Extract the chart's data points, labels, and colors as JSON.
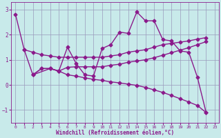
{
  "xlabel": "Windchill (Refroidissement éolien,°C)",
  "bg_color": "#c8eaea",
  "line_color": "#8b1a8b",
  "xlim": [
    -0.5,
    23.5
  ],
  "ylim": [
    -1.5,
    3.3
  ],
  "xticks": [
    0,
    1,
    2,
    3,
    4,
    5,
    6,
    7,
    8,
    9,
    10,
    11,
    12,
    13,
    14,
    15,
    16,
    17,
    18,
    19,
    20,
    21,
    22,
    23
  ],
  "yticks": [
    -1,
    0,
    1,
    2,
    3
  ],
  "grid_color": "#9999bb",
  "font_color": "#8b1a8b",
  "linewidth": 1.0,
  "markersize": 2.5,
  "line1_x": [
    0,
    1,
    2,
    3,
    4,
    5,
    6,
    7,
    8,
    9,
    10,
    11,
    12,
    13,
    14,
    15,
    16,
    17,
    18,
    19,
    20,
    21,
    22
  ],
  "line1_y": [
    2.8,
    1.4,
    0.4,
    0.65,
    0.65,
    0.55,
    1.5,
    0.85,
    0.4,
    0.35,
    1.45,
    1.6,
    2.1,
    2.05,
    2.9,
    2.55,
    2.55,
    1.8,
    1.75,
    1.35,
    1.3,
    0.3,
    -1.1
  ],
  "line2_x": [
    1,
    2,
    3,
    4,
    5,
    6,
    7,
    8,
    9,
    10,
    11,
    12,
    13,
    14,
    15,
    16,
    17,
    18,
    19,
    20,
    21,
    22
  ],
  "line2_y": [
    1.4,
    1.3,
    1.2,
    1.15,
    1.1,
    1.1,
    1.1,
    1.1,
    1.1,
    1.1,
    1.15,
    1.2,
    1.3,
    1.35,
    1.4,
    1.5,
    1.6,
    1.65,
    1.7,
    1.75,
    1.82,
    1.88
  ],
  "line3_x": [
    2,
    3,
    4,
    5,
    6,
    7,
    8,
    9,
    10,
    11,
    12,
    13,
    14,
    15,
    16,
    17,
    18,
    19,
    20,
    21,
    22
  ],
  "line3_y": [
    0.4,
    0.65,
    0.65,
    0.55,
    0.7,
    0.72,
    0.72,
    0.72,
    0.72,
    0.78,
    0.82,
    0.9,
    0.95,
    1.0,
    1.08,
    1.18,
    1.28,
    1.38,
    1.48,
    1.6,
    1.72
  ],
  "line4_x": [
    2,
    4,
    5,
    6,
    7,
    8,
    9,
    10,
    11,
    12,
    13,
    14,
    15,
    16,
    17,
    18,
    19,
    20,
    21,
    22
  ],
  "line4_y": [
    0.4,
    0.65,
    0.55,
    0.4,
    0.35,
    0.28,
    0.22,
    0.18,
    0.12,
    0.08,
    0.03,
    -0.02,
    -0.1,
    -0.2,
    -0.3,
    -0.42,
    -0.55,
    -0.68,
    -0.82,
    -1.1
  ]
}
